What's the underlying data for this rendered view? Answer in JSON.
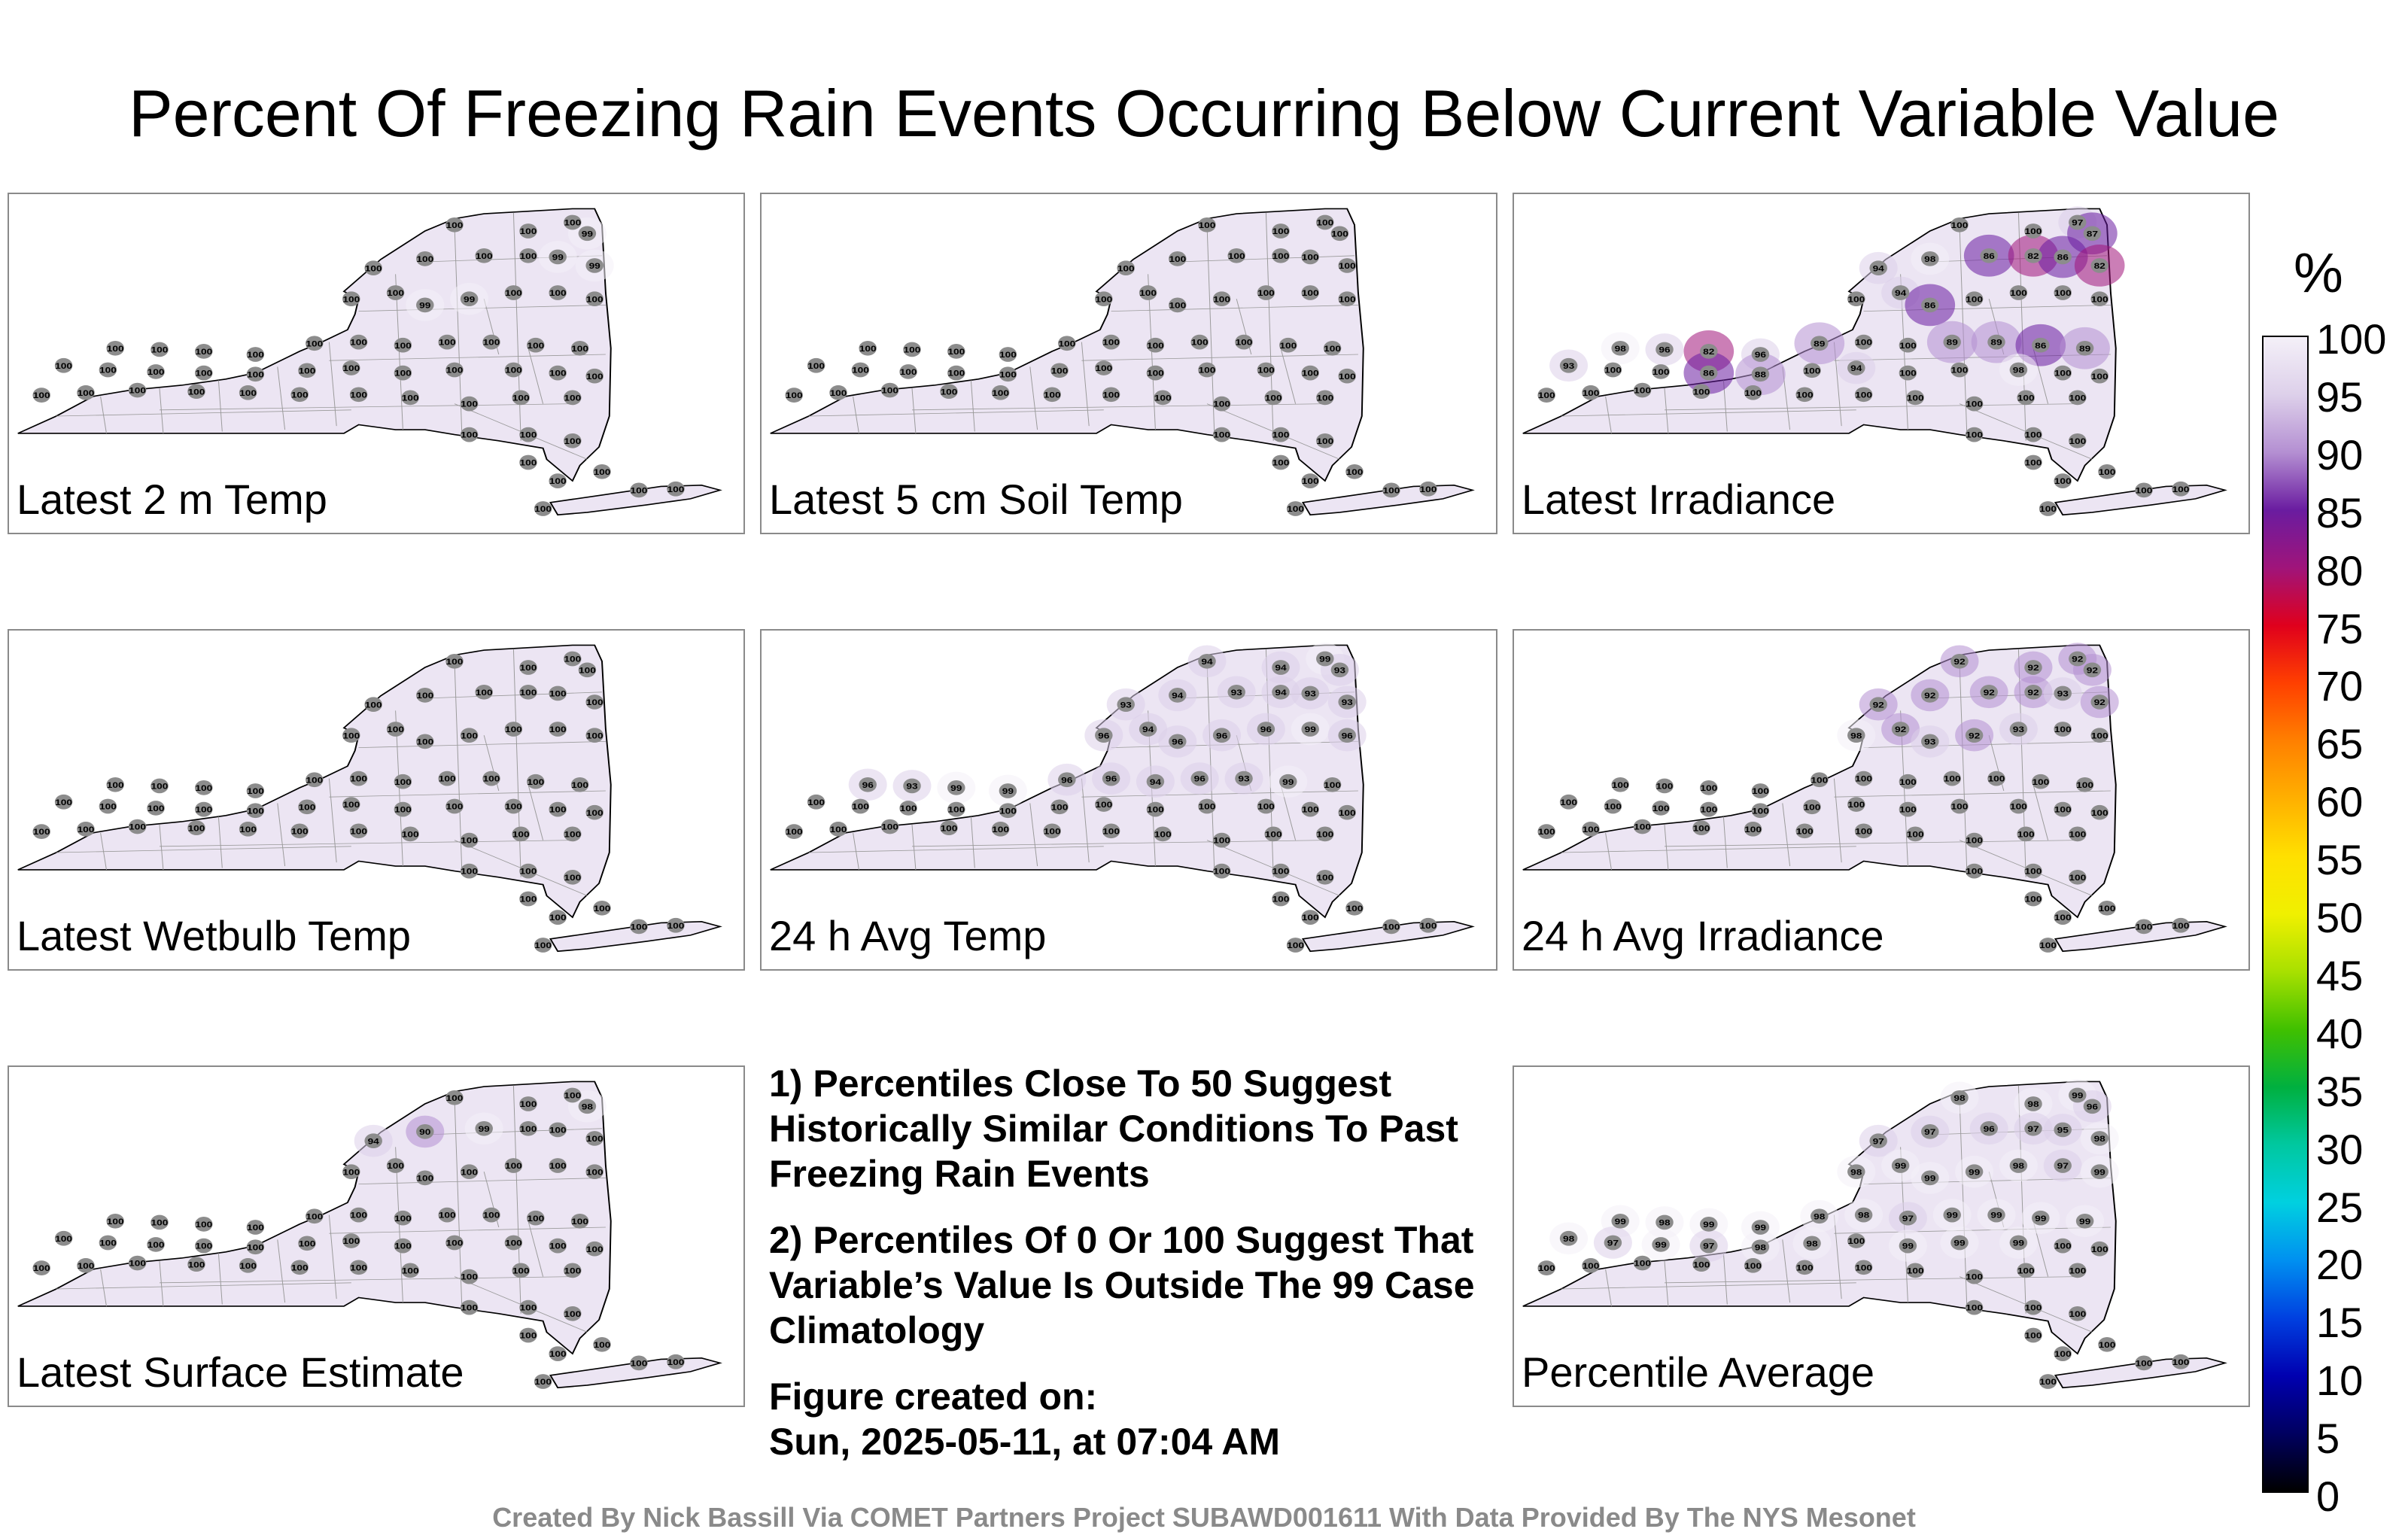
{
  "title": "Percent Of Freezing Rain Events Occurring Below Current Variable Value",
  "panels": [
    {
      "label": "Latest 2 m Temp",
      "stations": [
        100,
        100,
        100,
        99,
        100,
        100,
        100,
        100,
        99,
        99,
        100,
        100,
        99,
        99,
        100,
        100,
        100,
        100,
        100,
        100,
        100,
        100,
        100,
        100,
        100,
        100,
        100,
        100,
        100,
        100,
        100,
        100,
        100,
        100,
        100,
        100,
        100,
        100,
        100,
        100,
        100,
        100,
        100,
        100,
        100,
        100,
        100,
        100,
        100,
        100,
        100,
        100,
        100,
        100,
        100,
        100,
        100,
        100,
        100,
        100
      ]
    },
    {
      "label": "Latest 5 cm Soil Temp",
      "stations": [
        100,
        100,
        100,
        100,
        100,
        100,
        100,
        100,
        100,
        100,
        100,
        100,
        100,
        100,
        100,
        100,
        100,
        100,
        100,
        100,
        100,
        100,
        100,
        100,
        100,
        100,
        100,
        100,
        100,
        100,
        100,
        100,
        100,
        100,
        100,
        100,
        100,
        100,
        100,
        100,
        100,
        100,
        100,
        100,
        100,
        100,
        100,
        100,
        100,
        100,
        100,
        100,
        100,
        100,
        100,
        100,
        100,
        100,
        100,
        100
      ]
    },
    {
      "label": "Latest Irradiance",
      "stations": [
        100,
        100,
        97,
        87,
        94,
        98,
        86,
        82,
        86,
        82,
        100,
        94,
        86,
        100,
        100,
        100,
        100,
        98,
        96,
        82,
        96,
        89,
        100,
        100,
        89,
        89,
        86,
        89,
        93,
        100,
        100,
        86,
        88,
        100,
        94,
        100,
        100,
        98,
        100,
        100,
        100,
        100,
        100,
        100,
        100,
        100,
        100,
        100,
        100,
        100,
        100,
        100,
        100,
        100,
        100,
        100,
        100,
        100,
        100,
        100
      ]
    },
    {
      "label": "Latest Wetbulb Temp",
      "stations": [
        100,
        100,
        100,
        100,
        100,
        100,
        100,
        100,
        100,
        100,
        100,
        100,
        100,
        100,
        100,
        100,
        100,
        100,
        100,
        100,
        100,
        100,
        100,
        100,
        100,
        100,
        100,
        100,
        100,
        100,
        100,
        100,
        100,
        100,
        100,
        100,
        100,
        100,
        100,
        100,
        100,
        100,
        100,
        100,
        100,
        100,
        100,
        100,
        100,
        100,
        100,
        100,
        100,
        100,
        100,
        100,
        100,
        100,
        100,
        100
      ]
    },
    {
      "label": "24 h Avg Temp",
      "stations": [
        94,
        94,
        99,
        93,
        93,
        94,
        93,
        94,
        93,
        93,
        96,
        94,
        96,
        96,
        96,
        99,
        96,
        96,
        93,
        99,
        99,
        96,
        96,
        94,
        96,
        93,
        99,
        100,
        100,
        100,
        100,
        100,
        100,
        100,
        100,
        100,
        100,
        100,
        100,
        100,
        100,
        100,
        100,
        100,
        100,
        100,
        100,
        100,
        100,
        100,
        100,
        100,
        100,
        100,
        100,
        100,
        100,
        100,
        100,
        100
      ]
    },
    {
      "label": "24 h Avg Irradiance",
      "stations": [
        92,
        92,
        92,
        92,
        92,
        92,
        92,
        92,
        93,
        92,
        98,
        92,
        93,
        92,
        93,
        100,
        100,
        100,
        100,
        100,
        100,
        100,
        100,
        100,
        100,
        100,
        100,
        100,
        100,
        100,
        100,
        100,
        100,
        100,
        100,
        100,
        100,
        100,
        100,
        100,
        100,
        100,
        100,
        100,
        100,
        100,
        100,
        100,
        100,
        100,
        100,
        100,
        100,
        100,
        100,
        100,
        100,
        100,
        100,
        100
      ]
    },
    {
      "label": "Latest Surface Estimate",
      "stations": [
        100,
        100,
        100,
        98,
        94,
        90,
        99,
        100,
        100,
        100,
        100,
        100,
        100,
        100,
        100,
        100,
        100,
        100,
        100,
        100,
        100,
        100,
        100,
        100,
        100,
        100,
        100,
        100,
        100,
        100,
        100,
        100,
        100,
        100,
        100,
        100,
        100,
        100,
        100,
        100,
        100,
        100,
        100,
        100,
        100,
        100,
        100,
        100,
        100,
        100,
        100,
        100,
        100,
        100,
        100,
        100,
        100,
        100,
        100,
        100
      ]
    },
    {
      "label": "Percentile Average",
      "stations": [
        98,
        98,
        99,
        96,
        97,
        97,
        96,
        97,
        95,
        98,
        98,
        99,
        99,
        99,
        98,
        97,
        99,
        99,
        98,
        99,
        99,
        98,
        98,
        97,
        99,
        99,
        99,
        99,
        98,
        97,
        99,
        97,
        98,
        98,
        100,
        99,
        99,
        99,
        100,
        100,
        100,
        100,
        100,
        100,
        100,
        100,
        100,
        100,
        100,
        100,
        100,
        100,
        100,
        100,
        100,
        100,
        100,
        100,
        100,
        100
      ]
    }
  ],
  "notes": {
    "n1": "1) Percentiles Close To 50 Suggest Historically Similar Conditions To Past Freezing Rain Events",
    "n2": "2) Percentiles Of 0 Or 100 Suggest That Variable’s Value Is Outside The 99 Case Climatology",
    "created_label": "Figure created on:",
    "created_value": "Sun, 2025-05-11, at 07:04 AM"
  },
  "colorbar": {
    "unit": "%",
    "ticks": [
      "100",
      "95",
      "90",
      "85",
      "80",
      "75",
      "70",
      "65",
      "60",
      "55",
      "50",
      "45",
      "40",
      "35",
      "30",
      "25",
      "20",
      "15",
      "10",
      "5",
      "0"
    ],
    "stops": [
      "#f4f0f8",
      "#ddd0ea",
      "#b48fd2",
      "#6a1ca0",
      "#a0147a",
      "#e0001c",
      "#ff4000",
      "#ff8000",
      "#ffb000",
      "#ffe000",
      "#f0f000",
      "#a8e000",
      "#40c000",
      "#00b040",
      "#00c8a0",
      "#00d0e0",
      "#0090f0",
      "#0040e0",
      "#0000b0",
      "#000060",
      "#000000"
    ]
  },
  "credit": "Created By Nick Bassill Via COMET Partners Project SUBAWD001611 With Data Provided By The NYS Mesonet"
}
